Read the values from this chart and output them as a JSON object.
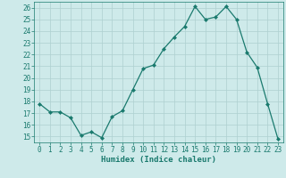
{
  "x": [
    0,
    1,
    2,
    3,
    4,
    5,
    6,
    7,
    8,
    9,
    10,
    11,
    12,
    13,
    14,
    15,
    16,
    17,
    18,
    19,
    20,
    21,
    22,
    23
  ],
  "y": [
    17.8,
    17.1,
    17.1,
    16.6,
    15.1,
    15.4,
    14.9,
    16.7,
    17.2,
    19.0,
    20.8,
    21.1,
    22.5,
    23.5,
    24.4,
    26.1,
    25.0,
    25.2,
    26.1,
    25.0,
    22.2,
    20.9,
    17.8,
    14.8
  ],
  "line_color": "#1a7a6e",
  "marker": "D",
  "marker_size": 2.0,
  "bg_color": "#ceeaea",
  "grid_color": "#aed0d0",
  "xlabel": "Humidex (Indice chaleur)",
  "xlim": [
    -0.5,
    23.5
  ],
  "ylim": [
    14.5,
    26.5
  ],
  "yticks": [
    15,
    16,
    17,
    18,
    19,
    20,
    21,
    22,
    23,
    24,
    25,
    26
  ],
  "xticks": [
    0,
    1,
    2,
    3,
    4,
    5,
    6,
    7,
    8,
    9,
    10,
    11,
    12,
    13,
    14,
    15,
    16,
    17,
    18,
    19,
    20,
    21,
    22,
    23
  ],
  "tick_color": "#1a7a6e",
  "font_color": "#1a7a6e",
  "axis_color": "#1a7a6e",
  "label_fontsize": 6.5,
  "tick_fontsize": 5.5
}
